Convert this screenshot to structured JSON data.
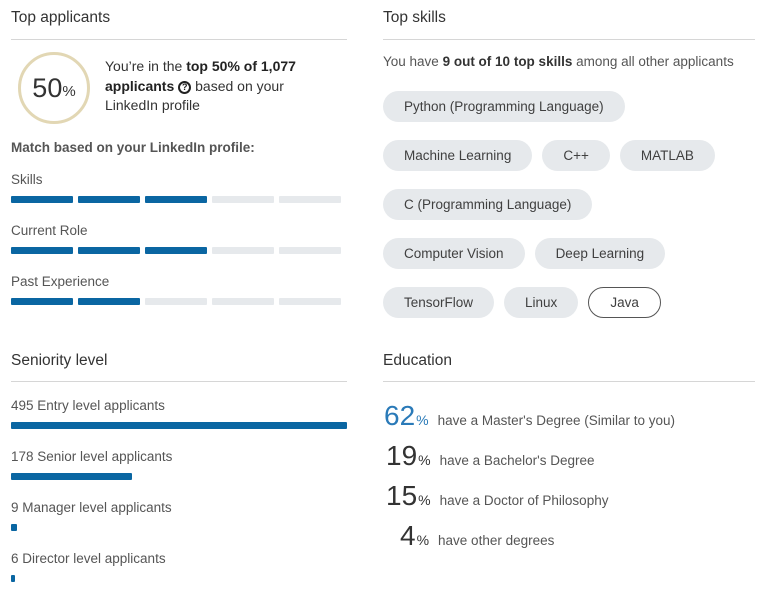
{
  "top_applicants": {
    "title": "Top applicants",
    "ring_value": "50",
    "ring_unit": "%",
    "rank_prefix": "You’re in the ",
    "rank_bold": "top 50% of 1,077 applicants",
    "rank_suffix": " based on your LinkedIn profile",
    "match_title": "Match based on your LinkedIn profile:",
    "criteria": [
      {
        "label": "Skills",
        "filled_segments": 3,
        "total_segments": 5
      },
      {
        "label": "Current Role",
        "filled_segments": 3,
        "total_segments": 5
      },
      {
        "label": "Past Experience",
        "filled_segments": 2,
        "total_segments": 5
      }
    ]
  },
  "top_skills": {
    "title": "Top skills",
    "intro_prefix": "You have ",
    "intro_bold": "9 out of 10 top skills",
    "intro_suffix": " among all other applicants",
    "skills": [
      {
        "label": "Python (Programming Language)",
        "matched": true
      },
      {
        "label": "Machine Learning",
        "matched": true
      },
      {
        "label": "C++",
        "matched": true
      },
      {
        "label": "MATLAB",
        "matched": true
      },
      {
        "label": "C (Programming Language)",
        "matched": true
      },
      {
        "label": "Computer Vision",
        "matched": true
      },
      {
        "label": "Deep Learning",
        "matched": true
      },
      {
        "label": "TensorFlow",
        "matched": true
      },
      {
        "label": "Linux",
        "matched": true
      },
      {
        "label": "Java",
        "matched": false
      }
    ]
  },
  "seniority": {
    "title": "Seniority level",
    "levels": [
      {
        "label": "495 Entry level applicants",
        "count": 495
      },
      {
        "label": "178 Senior level applicants",
        "count": 178
      },
      {
        "label": "9 Manager level applicants",
        "count": 9
      },
      {
        "label": "6 Director level applicants",
        "count": 6
      }
    ]
  },
  "education": {
    "title": "Education",
    "degrees": [
      {
        "percent": "62",
        "unit": "%",
        "text": "have a Master's Degree (Similar to you)",
        "highlight": true
      },
      {
        "percent": "19",
        "unit": "%",
        "text": "have a Bachelor's Degree",
        "highlight": false
      },
      {
        "percent": "15",
        "unit": "%",
        "text": "have a Doctor of Philosophy",
        "highlight": false
      },
      {
        "percent": "4",
        "unit": "%",
        "text": "have other degrees",
        "highlight": false
      }
    ]
  },
  "colors": {
    "accent_bar": "#0a66a2",
    "empty_bar": "#e6e9ec",
    "ring_gold": "#e2d7b4",
    "highlight_text": "#2a7ab8"
  }
}
